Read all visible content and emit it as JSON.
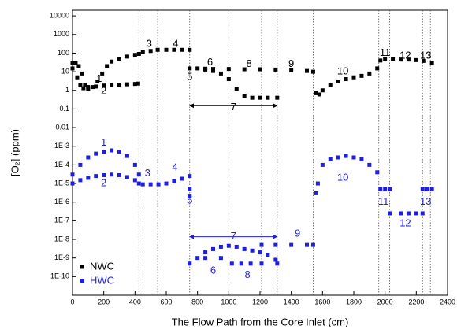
{
  "chart_data": {
    "type": "scatter",
    "xlabel": "The Flow Path from the Core Inlet (cm)",
    "ylabel": "[O₂] (ppm)",
    "log_y": true,
    "xlim": [
      0,
      2400
    ],
    "ylim": [
      1e-11,
      20000
    ],
    "xticks": [
      0,
      200,
      400,
      600,
      800,
      1000,
      1200,
      1400,
      1600,
      1800,
      2000,
      2200,
      2400
    ],
    "yticks": [
      10000,
      1000,
      100,
      10,
      1,
      0.1,
      0.01,
      {
        "value": 0.001,
        "label": "1E-3"
      },
      {
        "value": 0.0001,
        "label": "1E-4"
      },
      {
        "value": 1e-05,
        "label": "1E-5"
      },
      {
        "value": 1e-06,
        "label": "1E-6"
      },
      {
        "value": 1e-07,
        "label": "1E-7"
      },
      {
        "value": 1e-08,
        "label": "1E-8"
      },
      {
        "value": 1e-09,
        "label": "1E-9"
      },
      {
        "value": 1e-10,
        "label": "1E-10"
      }
    ],
    "section_lines": [
      425,
      545,
      750,
      1000,
      1210,
      1310,
      1540,
      1960,
      2030,
      2240,
      2290
    ],
    "legend": "lower left",
    "series": [
      {
        "name": "NWC",
        "color": "#000000",
        "x": [
          0,
          20,
          40,
          60,
          80,
          100,
          150,
          200,
          250,
          300,
          350,
          400,
          420,
          0,
          30,
          50,
          70,
          100,
          130,
          160,
          190,
          220,
          250,
          300,
          350,
          400,
          425,
          450,
          500,
          545,
          600,
          650,
          700,
          750,
          750,
          800,
          850,
          900,
          1000,
          1100,
          1200,
          1300,
          1400,
          1500,
          1540,
          850,
          900,
          950,
          1000,
          1050,
          1100,
          1150,
          1200,
          1250,
          1310,
          1560,
          1580,
          1600,
          1650,
          1700,
          1750,
          1800,
          1850,
          1900,
          1950,
          1970,
          2000,
          2050,
          2100,
          2150,
          2200,
          2250,
          2300
        ],
        "values": [
          30,
          28,
          20,
          8,
          2,
          1.5,
          1.6,
          1.8,
          1.9,
          2,
          2.1,
          2.2,
          2.3,
          15,
          5,
          2,
          1.3,
          1.2,
          1.5,
          3,
          8,
          20,
          35,
          50,
          65,
          80,
          90,
          110,
          130,
          150,
          150,
          150,
          150,
          150,
          15,
          15,
          14.5,
          14,
          14,
          13.5,
          13.5,
          13,
          12,
          11,
          10,
          13,
          11,
          8,
          4,
          1.2,
          0.5,
          0.4,
          0.4,
          0.4,
          0.4,
          0.7,
          0.6,
          1,
          2,
          3,
          4,
          5,
          6,
          8,
          15,
          40,
          50,
          50,
          45,
          45,
          42,
          38,
          30
        ]
      },
      {
        "name": "HWC",
        "color": "#1f1fe0",
        "x": [
          0,
          50,
          100,
          150,
          200,
          250,
          300,
          350,
          400,
          425,
          0,
          50,
          100,
          150,
          200,
          250,
          300,
          350,
          400,
          425,
          450,
          500,
          550,
          600,
          650,
          700,
          750,
          750,
          750,
          750,
          800,
          850,
          900,
          950,
          1000,
          1050,
          1100,
          1150,
          1200,
          1250,
          1300,
          1310,
          850,
          950,
          1020,
          1080,
          1140,
          1210,
          1210,
          1300,
          1400,
          1500,
          1540,
          1560,
          1570,
          1600,
          1650,
          1700,
          1750,
          1800,
          1850,
          1900,
          1950,
          1970,
          2000,
          2030,
          2030,
          2100,
          2150,
          2200,
          2240,
          2240,
          2270,
          2300
        ],
        "values": [
          3e-05,
          0.0001,
          0.00025,
          0.0004,
          0.0005,
          0.0006,
          0.0005,
          0.0003,
          0.0001,
          3e-05,
          1e-05,
          1.5e-05,
          2e-05,
          2.5e-05,
          2.8e-05,
          3e-05,
          2.8e-05,
          2.2e-05,
          1.5e-05,
          1e-05,
          9e-06,
          9e-06,
          9e-06,
          1e-05,
          1.3e-05,
          1.8e-05,
          2.5e-05,
          5e-06,
          2e-06,
          5e-10,
          1e-09,
          2e-09,
          3e-09,
          4e-09,
          4.5e-09,
          4e-09,
          3e-09,
          2.5e-09,
          2e-09,
          1.5e-09,
          8e-10,
          5e-10,
          1e-09,
          1e-09,
          5e-10,
          5e-10,
          5e-10,
          5e-10,
          5e-09,
          5e-09,
          5e-09,
          5e-09,
          5e-09,
          3e-06,
          1e-05,
          0.0001,
          0.0002,
          0.00025,
          0.0003,
          0.00025,
          0.0002,
          0.0001,
          4e-05,
          5e-06,
          5e-06,
          5e-06,
          2.5e-07,
          2.5e-07,
          2.5e-07,
          2.5e-07,
          2.5e-07,
          5e-06,
          5e-06,
          5e-06
        ]
      }
    ],
    "arrows": [
      {
        "x": [
          750,
          1310
        ],
        "y": 0.15,
        "color": "#000000"
      },
      {
        "x": [
          750,
          1310
        ],
        "y": 1.4e-08,
        "color": "#1f1fe0"
      }
    ],
    "annotations": [
      {
        "text": "1",
        "x": 170,
        "y": 4,
        "color": "#000000"
      },
      {
        "text": "2",
        "x": 200,
        "y": 0.9,
        "color": "#000000"
      },
      {
        "text": "3",
        "x": 490,
        "y": 300,
        "color": "#000000"
      },
      {
        "text": "4",
        "x": 660,
        "y": 300,
        "color": "#000000"
      },
      {
        "text": "5",
        "x": 750,
        "y": 5,
        "color": "#000000"
      },
      {
        "text": "6",
        "x": 880,
        "y": 30,
        "color": "#000000"
      },
      {
        "text": "8",
        "x": 1130,
        "y": 25,
        "color": "#000000"
      },
      {
        "text": "9",
        "x": 1400,
        "y": 25,
        "color": "#000000"
      },
      {
        "text": "7",
        "x": 1030,
        "y": 0.12,
        "color": "#000000"
      },
      {
        "text": "10",
        "x": 1730,
        "y": 10,
        "color": "#000000"
      },
      {
        "text": "11",
        "x": 2000,
        "y": 100,
        "color": "#000000"
      },
      {
        "text": "12",
        "x": 2130,
        "y": 70,
        "color": "#000000"
      },
      {
        "text": "13",
        "x": 2260,
        "y": 70,
        "color": "#000000"
      },
      {
        "text": "1",
        "x": 200,
        "y": 0.0015,
        "color": "#1f1fe0"
      },
      {
        "text": "2",
        "x": 200,
        "y": 1e-05,
        "color": "#1f1fe0"
      },
      {
        "text": "3",
        "x": 480,
        "y": 3.4e-05,
        "color": "#1f1fe0"
      },
      {
        "text": "4",
        "x": 655,
        "y": 7e-05,
        "color": "#1f1fe0"
      },
      {
        "text": "5",
        "x": 750,
        "y": 1.2e-06,
        "color": "#1f1fe0"
      },
      {
        "text": "7",
        "x": 1030,
        "y": 1.4e-08,
        "color": "#1f1fe0"
      },
      {
        "text": "9",
        "x": 1440,
        "y": 2e-08,
        "color": "#1f1fe0"
      },
      {
        "text": "6",
        "x": 900,
        "y": 2e-10,
        "color": "#1f1fe0"
      },
      {
        "text": "8",
        "x": 1120,
        "y": 1.2e-10,
        "color": "#1f1fe0"
      },
      {
        "text": "10",
        "x": 1730,
        "y": 2e-05,
        "color": "#1f1fe0"
      },
      {
        "text": "11",
        "x": 1990,
        "y": 1e-06,
        "color": "#1f1fe0"
      },
      {
        "text": "12",
        "x": 2130,
        "y": 7e-08,
        "color": "#1f1fe0"
      },
      {
        "text": "13",
        "x": 2260,
        "y": 1e-06,
        "color": "#1f1fe0"
      }
    ]
  }
}
